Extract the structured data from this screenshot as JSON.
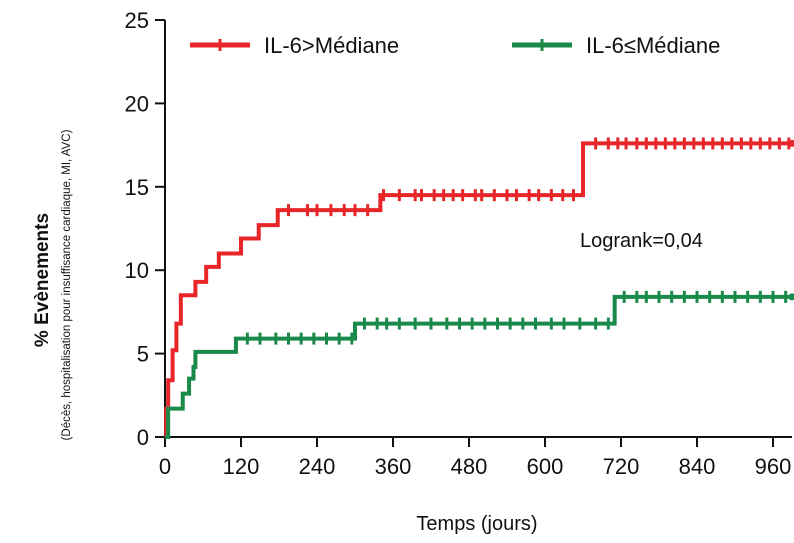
{
  "chart_data": {
    "type": "line",
    "xlabel": "Temps (jours)",
    "ylabel": "% Evènements",
    "ylabel_sub": "(Décès, hospitalisation pour insuffisance cardiaque, MI, AVC)",
    "xlim": [
      0,
      990
    ],
    "ylim": [
      0,
      25
    ],
    "xticks": [
      0,
      120,
      240,
      360,
      480,
      600,
      720,
      840,
      960
    ],
    "yticks": [
      0,
      5,
      10,
      15,
      20,
      25
    ],
    "annotation": "Logrank=0,04",
    "legend_position": "top",
    "series": [
      {
        "name": "IL-6>Médiane",
        "color": "#e8262a",
        "steps": [
          [
            0,
            0
          ],
          [
            2,
            1.7
          ],
          [
            5,
            3.4
          ],
          [
            12,
            5.2
          ],
          [
            18,
            6.8
          ],
          [
            25,
            8.5
          ],
          [
            48,
            9.3
          ],
          [
            65,
            10.2
          ],
          [
            85,
            11.0
          ],
          [
            120,
            11.9
          ],
          [
            148,
            12.7
          ],
          [
            178,
            13.6
          ],
          [
            340,
            14.5
          ],
          [
            660,
            17.6
          ],
          [
            990,
            17.6
          ]
        ],
        "censor_x": [
          195,
          225,
          240,
          262,
          283,
          300,
          320,
          345,
          370,
          395,
          405,
          425,
          440,
          455,
          470,
          490,
          500,
          520,
          540,
          555,
          575,
          590,
          610,
          628,
          645,
          680,
          700,
          715,
          728,
          745,
          760,
          775,
          790,
          805,
          820,
          835,
          850,
          865,
          880,
          895,
          910,
          925,
          940,
          955,
          970,
          985
        ]
      },
      {
        "name": "IL-6≤Médiane",
        "color": "#1a8a4a",
        "steps": [
          [
            0,
            0
          ],
          [
            5,
            1.7
          ],
          [
            28,
            2.6
          ],
          [
            38,
            3.5
          ],
          [
            45,
            4.2
          ],
          [
            48,
            5.1
          ],
          [
            112,
            5.9
          ],
          [
            300,
            6.8
          ],
          [
            710,
            8.4
          ],
          [
            990,
            8.4
          ]
        ],
        "censor_x": [
          130,
          150,
          175,
          195,
          215,
          235,
          255,
          275,
          295,
          315,
          335,
          350,
          370,
          395,
          420,
          445,
          465,
          485,
          505,
          525,
          545,
          565,
          585,
          610,
          630,
          655,
          680,
          700,
          725,
          745,
          760,
          780,
          800,
          820,
          840,
          860,
          880,
          900,
          920,
          940,
          960,
          980
        ]
      }
    ]
  }
}
